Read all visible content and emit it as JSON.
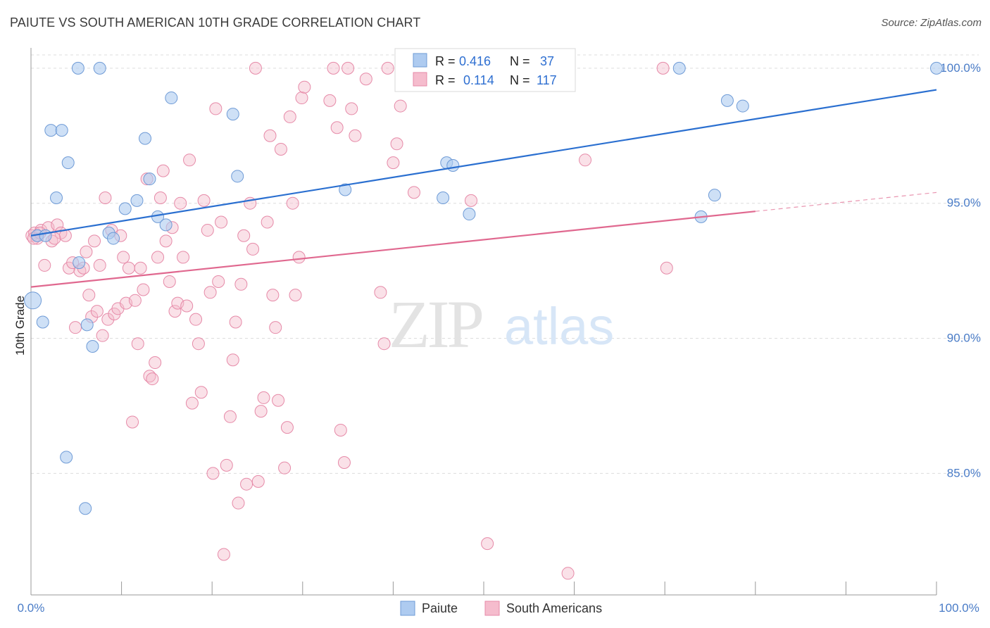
{
  "title": "PAIUTE VS SOUTH AMERICAN 10TH GRADE CORRELATION CHART",
  "source": "Source: ZipAtlas.com",
  "watermark": {
    "zip": "ZIP",
    "atlas": "atlas"
  },
  "legend_stats": [
    {
      "r_label": "R =",
      "r_value": "0.416",
      "n_label": "N =",
      "n_value": "37"
    },
    {
      "r_label": "R =",
      "r_value": "0.114",
      "n_label": "N =",
      "n_value": "117"
    }
  ],
  "colors": {
    "paiute_fill": "#aecbf0",
    "paiute_stroke": "#6f9bd6",
    "paiute_line": "#2a6fd0",
    "south_fill": "#f5bccd",
    "south_stroke": "#e68aa8",
    "south_line": "#e0688f",
    "tick_text": "#4a7cc7",
    "grid": "#dddddd"
  },
  "chart_data": {
    "type": "scatter",
    "title": "PAIUTE VS SOUTH AMERICAN 10TH GRADE CORRELATION CHART",
    "xlabel": "",
    "ylabel": "10th Grade",
    "xlim": [
      0,
      100
    ],
    "ylim": [
      80.5,
      100.7
    ],
    "x_tick_labels": [
      "0.0%",
      "100.0%"
    ],
    "y_ticks": [
      85,
      90,
      95,
      100
    ],
    "y_tick_labels": [
      "85.0%",
      "90.0%",
      "95.0%",
      "100.0%"
    ],
    "grid": true,
    "legend_position": "bottom-center",
    "series": [
      {
        "name": "Paiute",
        "r": 0.416,
        "n": 37,
        "trend": {
          "x": [
            0,
            100
          ],
          "y": [
            93.8,
            99.2
          ],
          "dashed_from": null
        },
        "points": [
          [
            0.2,
            91.4
          ],
          [
            1.3,
            90.6
          ],
          [
            2.2,
            97.7
          ],
          [
            2.8,
            95.2
          ],
          [
            3.4,
            97.7
          ],
          [
            4.1,
            96.5
          ],
          [
            3.9,
            85.6
          ],
          [
            5.2,
            100
          ],
          [
            7.6,
            100
          ],
          [
            6.0,
            83.7
          ],
          [
            6.2,
            90.5
          ],
          [
            6.8,
            89.7
          ],
          [
            8.6,
            93.9
          ],
          [
            9.1,
            93.7
          ],
          [
            10.4,
            94.8
          ],
          [
            11.7,
            95.1
          ],
          [
            12.6,
            97.4
          ],
          [
            13.1,
            95.9
          ],
          [
            14.0,
            94.5
          ],
          [
            14.9,
            94.2
          ],
          [
            15.5,
            98.9
          ],
          [
            22.3,
            98.3
          ],
          [
            22.8,
            96.0
          ],
          [
            34.7,
            95.5
          ],
          [
            45.5,
            95.2
          ],
          [
            45.9,
            96.5
          ],
          [
            46.6,
            96.4
          ],
          [
            48.4,
            94.6
          ],
          [
            71.6,
            100
          ],
          [
            74.0,
            94.5
          ],
          [
            75.5,
            95.3
          ],
          [
            76.9,
            98.8
          ],
          [
            78.6,
            98.6
          ],
          [
            100,
            100
          ],
          [
            0.7,
            93.8
          ],
          [
            1.6,
            93.8
          ],
          [
            5.3,
            92.8
          ]
        ]
      },
      {
        "name": "South Americans",
        "r": 0.114,
        "n": 117,
        "trend": {
          "x": [
            0,
            100
          ],
          "y": [
            91.9,
            95.4
          ],
          "dashed_from": 80
        },
        "points": [
          [
            0.1,
            93.8
          ],
          [
            0.4,
            93.9
          ],
          [
            0.7,
            93.7
          ],
          [
            1.1,
            94.0
          ],
          [
            1.5,
            92.7
          ],
          [
            1.9,
            94.1
          ],
          [
            2.3,
            93.6
          ],
          [
            2.9,
            94.2
          ],
          [
            3.3,
            93.9
          ],
          [
            3.8,
            93.8
          ],
          [
            4.2,
            92.6
          ],
          [
            4.6,
            92.8
          ],
          [
            4.9,
            90.4
          ],
          [
            5.4,
            92.5
          ],
          [
            5.8,
            92.6
          ],
          [
            6.1,
            93.2
          ],
          [
            6.4,
            91.6
          ],
          [
            6.7,
            90.8
          ],
          [
            7.0,
            93.6
          ],
          [
            7.3,
            91.0
          ],
          [
            7.6,
            92.7
          ],
          [
            7.9,
            90.1
          ],
          [
            8.2,
            95.2
          ],
          [
            8.5,
            90.7
          ],
          [
            8.9,
            94.0
          ],
          [
            9.2,
            90.9
          ],
          [
            9.6,
            91.1
          ],
          [
            9.9,
            93.8
          ],
          [
            10.2,
            93.0
          ],
          [
            10.5,
            91.3
          ],
          [
            10.8,
            92.6
          ],
          [
            11.2,
            86.9
          ],
          [
            11.5,
            91.4
          ],
          [
            11.8,
            89.8
          ],
          [
            12.1,
            92.6
          ],
          [
            12.4,
            91.8
          ],
          [
            12.8,
            95.9
          ],
          [
            13.1,
            88.6
          ],
          [
            13.4,
            88.5
          ],
          [
            13.7,
            89.1
          ],
          [
            14.0,
            93.0
          ],
          [
            14.3,
            95.2
          ],
          [
            14.6,
            96.2
          ],
          [
            14.9,
            93.6
          ],
          [
            15.3,
            92.1
          ],
          [
            15.6,
            94.1
          ],
          [
            15.9,
            91.0
          ],
          [
            16.2,
            91.3
          ],
          [
            16.5,
            95.0
          ],
          [
            16.8,
            93.0
          ],
          [
            17.2,
            91.2
          ],
          [
            17.5,
            96.6
          ],
          [
            17.8,
            87.6
          ],
          [
            18.2,
            90.7
          ],
          [
            18.5,
            89.8
          ],
          [
            18.8,
            88.0
          ],
          [
            19.1,
            95.1
          ],
          [
            19.5,
            94.0
          ],
          [
            19.8,
            91.7
          ],
          [
            20.1,
            85.0
          ],
          [
            20.4,
            98.5
          ],
          [
            20.7,
            92.1
          ],
          [
            21.0,
            94.3
          ],
          [
            21.3,
            82.0
          ],
          [
            21.6,
            85.3
          ],
          [
            22.0,
            87.1
          ],
          [
            22.3,
            89.2
          ],
          [
            22.6,
            90.6
          ],
          [
            22.9,
            83.9
          ],
          [
            23.2,
            92.0
          ],
          [
            23.5,
            93.8
          ],
          [
            23.8,
            84.6
          ],
          [
            24.2,
            95.0
          ],
          [
            24.5,
            93.3
          ],
          [
            24.8,
            100
          ],
          [
            25.1,
            84.7
          ],
          [
            25.4,
            87.3
          ],
          [
            25.7,
            87.8
          ],
          [
            26.1,
            94.3
          ],
          [
            26.4,
            97.5
          ],
          [
            26.7,
            91.6
          ],
          [
            27.0,
            90.4
          ],
          [
            27.3,
            87.7
          ],
          [
            27.6,
            97.0
          ],
          [
            28.0,
            85.2
          ],
          [
            28.3,
            86.7
          ],
          [
            28.6,
            98.2
          ],
          [
            28.9,
            95.0
          ],
          [
            29.2,
            91.6
          ],
          [
            29.6,
            93.0
          ],
          [
            29.9,
            98.9
          ],
          [
            30.2,
            99.3
          ],
          [
            33.0,
            98.8
          ],
          [
            33.4,
            100
          ],
          [
            33.8,
            97.8
          ],
          [
            34.2,
            86.6
          ],
          [
            34.6,
            85.4
          ],
          [
            35.0,
            100
          ],
          [
            35.4,
            98.5
          ],
          [
            35.8,
            97.5
          ],
          [
            37.0,
            99.6
          ],
          [
            38.6,
            91.7
          ],
          [
            39.0,
            89.8
          ],
          [
            39.4,
            100
          ],
          [
            40.0,
            96.5
          ],
          [
            40.4,
            97.2
          ],
          [
            40.8,
            98.6
          ],
          [
            42.3,
            95.4
          ],
          [
            48.6,
            95.1
          ],
          [
            50.4,
            82.4
          ],
          [
            59.3,
            81.3
          ],
          [
            61.2,
            96.6
          ],
          [
            69.8,
            100
          ],
          [
            70.2,
            92.6
          ],
          [
            0.3,
            93.7
          ],
          [
            1.0,
            93.9
          ],
          [
            2.6,
            93.7
          ]
        ]
      }
    ]
  }
}
